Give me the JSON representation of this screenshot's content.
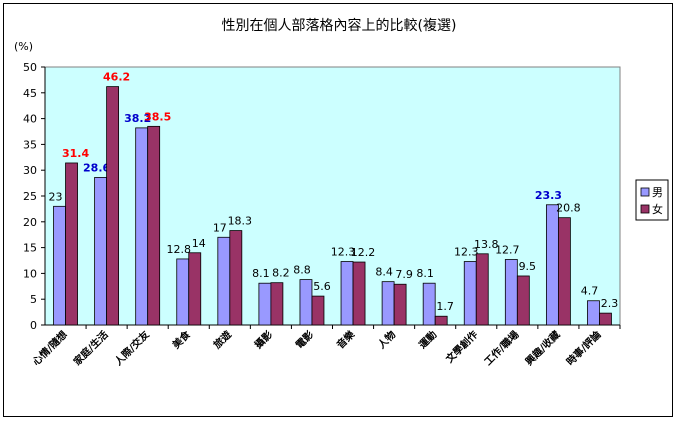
{
  "chart_data": {
    "type": "bar",
    "title": "性別在個人部落格內容上的比較(複選)",
    "ylabel": "(%)",
    "ylim": [
      0,
      50
    ],
    "yticks": [
      "0",
      "5",
      "10",
      "15",
      "20",
      "25",
      "30",
      "35",
      "40",
      "45",
      "50"
    ],
    "categories": [
      "心情/隨想",
      "家庭/生活",
      "人際/交友",
      "美食",
      "旅遊",
      "攝影",
      "電影",
      "音樂",
      "人物",
      "運動",
      "文學創作",
      "工作/職場",
      "興趣/收藏",
      "時事/評論"
    ],
    "series": [
      {
        "name": "男",
        "values": [
          23,
          28.6,
          38.2,
          12.8,
          17,
          8.1,
          8.8,
          12.3,
          8.4,
          8.1,
          12.3,
          12.7,
          23.3,
          4.7
        ],
        "labels": [
          "23",
          "28.6",
          "38.2",
          "12.8",
          "17",
          "8.1",
          "8.8",
          "12.3",
          "8.4",
          "8.1",
          "12.3",
          "12.7",
          "23.3",
          "4.7"
        ],
        "color": "#9999ff",
        "highlight_color": "#0000cc",
        "highlight_index": [
          1,
          2,
          12
        ]
      },
      {
        "name": "女",
        "values": [
          31.4,
          46.2,
          38.5,
          14,
          18.3,
          8.2,
          5.6,
          12.2,
          7.9,
          1.7,
          13.8,
          9.5,
          20.8,
          2.3
        ],
        "labels": [
          "31.4",
          "46.2",
          "38.5",
          "14",
          "18.3",
          "8.2",
          "5.6",
          "12.2",
          "7.9",
          "1.7",
          "13.8",
          "9.5",
          "20.8",
          "2.3"
        ],
        "color": "#993366",
        "highlight_color": "#ff0000",
        "highlight_index": [
          0,
          1,
          2
        ]
      }
    ],
    "plot_background": "#ccffff",
    "grid": false,
    "legend_position": "right"
  }
}
